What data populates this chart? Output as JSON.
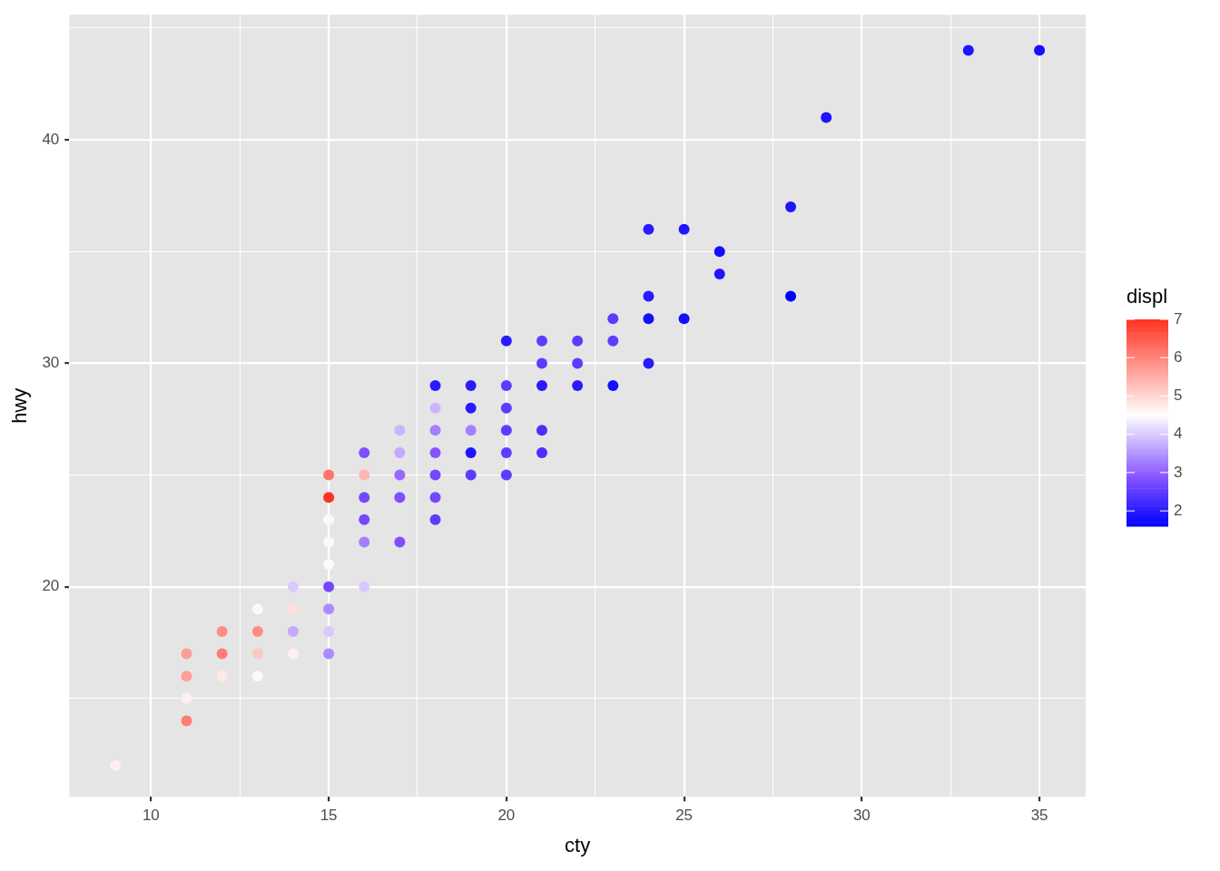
{
  "chart_data": {
    "type": "scatter",
    "xlabel": "cty",
    "ylabel": "hwy",
    "clabel": "displ",
    "xlim": [
      7.7,
      36.3
    ],
    "ylim": [
      10.6,
      45.6
    ],
    "xticks": [
      10,
      {
        "value": 12.5,
        "label": null
      },
      15,
      {
        "value": 17.5,
        "label": null
      },
      20,
      {
        "value": 22.5,
        "label": null
      },
      25,
      {
        "value": 27.5,
        "label": null
      },
      30,
      {
        "value": 32.5,
        "label": null
      },
      35
    ],
    "yticks": [
      {
        "value": 15,
        "label": null
      },
      20,
      {
        "value": 25,
        "label": null
      },
      30,
      {
        "value": 35,
        "label": null
      },
      40,
      {
        "value": 45,
        "label": null
      }
    ],
    "clim": [
      1.6,
      7
    ],
    "cticks": [
      2,
      3,
      4,
      5,
      6,
      7
    ],
    "grid": true,
    "legend": false,
    "marker": "circle",
    "x": [
      9,
      11,
      11,
      11,
      11,
      12,
      12,
      12,
      13,
      13,
      13,
      13,
      14,
      14,
      14,
      14,
      15,
      15,
      15,
      15,
      15,
      15,
      15,
      15,
      15,
      16,
      16,
      16,
      16,
      16,
      16,
      17,
      17,
      17,
      17,
      17,
      18,
      18,
      18,
      18,
      18,
      18,
      18,
      19,
      19,
      19,
      19,
      19,
      20,
      20,
      20,
      20,
      20,
      20,
      21,
      21,
      21,
      21,
      21,
      22,
      22,
      22,
      23,
      23,
      23,
      24,
      24,
      24,
      24,
      25,
      25,
      26,
      26,
      28,
      28,
      29,
      33,
      35
    ],
    "values": [
      12,
      17,
      16,
      15,
      14,
      18,
      17,
      16,
      19,
      18,
      17,
      16,
      20,
      19,
      18,
      17,
      25,
      24,
      23,
      22,
      21,
      20,
      19,
      18,
      17,
      26,
      25,
      24,
      23,
      22,
      20,
      27,
      26,
      25,
      24,
      22,
      29,
      28,
      27,
      26,
      25,
      24,
      23,
      29,
      28,
      27,
      26,
      25,
      31,
      29,
      28,
      27,
      26,
      25,
      31,
      30,
      29,
      27,
      26,
      31,
      30,
      29,
      32,
      31,
      29,
      36,
      33,
      32,
      30,
      36,
      32,
      35,
      34,
      37,
      33,
      41,
      44,
      44
    ],
    "cvalues": [
      4.7,
      5.7,
      5.7,
      4.7,
      6.1,
      5.9,
      6.1,
      4.8,
      4.6,
      5.9,
      5.2,
      4.6,
      4,
      4.9,
      3.7,
      4.7,
      6.2,
      7,
      4.6,
      4.6,
      4.6,
      2.7,
      3.4,
      4,
      3.4,
      2.8,
      5.4,
      2.7,
      2.7,
      3.3,
      4,
      3.8,
      3.7,
      3.1,
      2.8,
      2.8,
      2,
      3.8,
      3.3,
      2.9,
      2.7,
      2.7,
      2.5,
      2,
      2,
      3.3,
      1.9,
      2.5,
      2,
      2.5,
      2.5,
      2.5,
      2.5,
      2.5,
      2.5,
      2.5,
      2,
      2.3,
      2.3,
      2.5,
      2.5,
      2,
      2.5,
      2.5,
      1.8,
      2,
      2,
      1.8,
      2,
      1.9,
      1.8,
      1.8,
      1.9,
      1.9,
      1.6,
      1.9,
      1.9,
      1.8
    ]
  }
}
